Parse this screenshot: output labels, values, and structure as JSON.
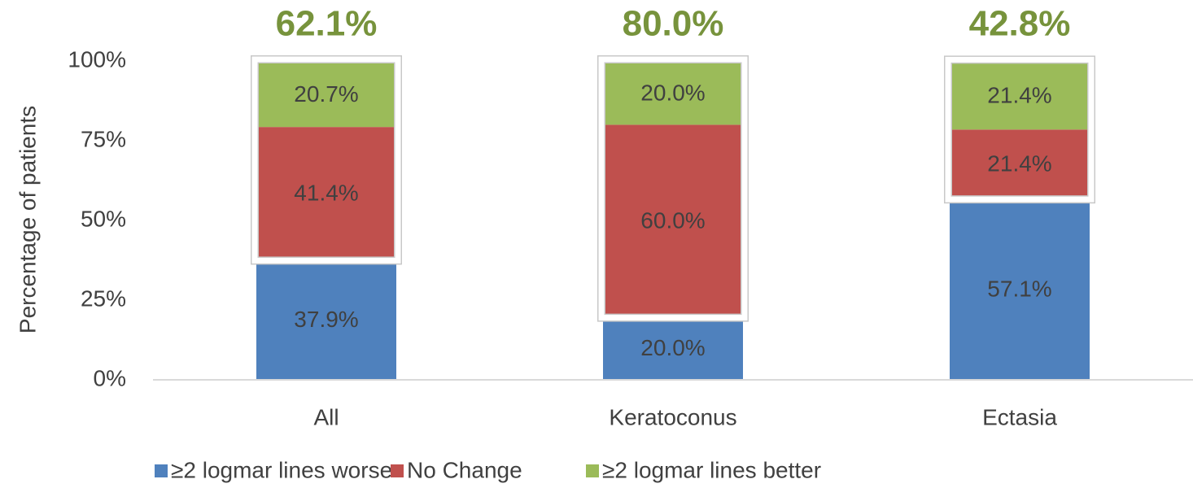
{
  "chart_data": {
    "type": "stacked_bar",
    "y_label": "Percentage of patients",
    "categories": [
      "All",
      "Keratoconus",
      "Ectasia"
    ],
    "series": [
      {
        "name": "≥2 logmar lines worse",
        "color": "#4f81bd",
        "values": [
          37.9,
          20.0,
          57.1
        ],
        "value_labels": [
          "37.9%",
          "20.0%",
          "57.1%"
        ]
      },
      {
        "name": "No Change",
        "color": "#c0504d",
        "values": [
          41.4,
          60.0,
          21.4
        ],
        "value_labels": [
          "41.4%",
          "60.0%",
          "21.4%"
        ]
      },
      {
        "name": "≥2 logmar lines better",
        "color": "#9bbb59",
        "values": [
          20.7,
          20.0,
          21.4
        ],
        "value_labels": [
          "20.7%",
          "20.0%",
          "21.4%"
        ]
      }
    ],
    "annotations": {
      "color": "#77933c",
      "values": [
        62.1,
        80.0,
        42.8
      ],
      "value_labels": [
        "62.1%",
        "80.0%",
        "42.8%"
      ]
    },
    "ylim": [
      0,
      100
    ],
    "yticks": [
      {
        "value": 0,
        "label": "0%"
      },
      {
        "value": 25,
        "label": "25%"
      },
      {
        "value": 50,
        "label": "50%"
      },
      {
        "value": 75,
        "label": "75%"
      },
      {
        "value": 100,
        "label": "100%"
      }
    ],
    "grid": false,
    "legend": "bottom"
  }
}
